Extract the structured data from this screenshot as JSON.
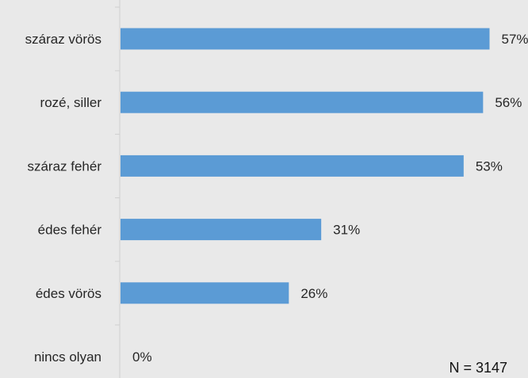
{
  "chart_data": {
    "type": "bar",
    "orientation": "horizontal",
    "categories": [
      "száraz vörös",
      "rozé, siller",
      "száraz fehér",
      "édes fehér",
      "édes vörös",
      "nincs olyan"
    ],
    "values": [
      57,
      56,
      53,
      31,
      26,
      0
    ],
    "value_labels": [
      "57%",
      "56%",
      "53%",
      "31%",
      "26%",
      "0%"
    ],
    "xlim": [
      0,
      60
    ],
    "grid": false,
    "legend": "none",
    "colors": {
      "background": "#e9e9e9",
      "bar": "#5b9bd5",
      "axis": "#d0d0d0",
      "text": "#262626"
    },
    "annotation": "N = 3147"
  }
}
